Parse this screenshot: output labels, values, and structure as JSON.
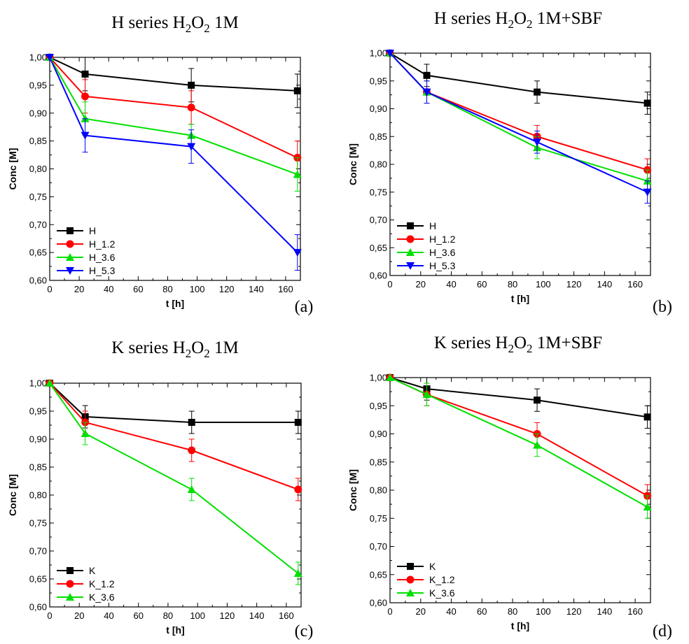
{
  "chart_data": [
    {
      "type": "line",
      "title": "H series H2O2 1M",
      "title_parts": [
        "H series H",
        "2",
        "O",
        "2",
        " 1M"
      ],
      "panel_label": "(a)",
      "xlabel": "t [h]",
      "ylabel": "Conc [M]",
      "xlim": [
        0,
        170
      ],
      "ylim": [
        0.6,
        1.0
      ],
      "xticks": [
        "0",
        "20",
        "40",
        "60",
        "80",
        "100",
        "120",
        "140",
        "160"
      ],
      "yticks": [
        "0,60",
        "0,65",
        "0,70",
        "0,75",
        "0,80",
        "0,85",
        "0,90",
        "0,95",
        "1,00"
      ],
      "grid": false,
      "legend_position": "bottom-left",
      "x": [
        0,
        24,
        96,
        168
      ],
      "series": [
        {
          "name": "H",
          "color": "#000000",
          "marker": "square",
          "values": [
            1.0,
            0.97,
            0.95,
            0.94
          ],
          "errors": [
            0,
            0.03,
            0.03,
            0.03
          ]
        },
        {
          "name": "H_1.2",
          "color": "#ff0000",
          "marker": "circle",
          "values": [
            1.0,
            0.93,
            0.91,
            0.82
          ],
          "errors": [
            0,
            0.03,
            0.03,
            0.03
          ]
        },
        {
          "name": "H_3.6",
          "color": "#00e000",
          "marker": "triangle-up",
          "values": [
            1.0,
            0.89,
            0.86,
            0.79
          ],
          "errors": [
            0,
            0.03,
            0.02,
            0.03
          ]
        },
        {
          "name": "H_5.3",
          "color": "#0000ff",
          "marker": "triangle-down",
          "values": [
            1.0,
            0.86,
            0.84,
            0.65
          ],
          "errors": [
            0,
            0.03,
            0.03,
            0.032
          ]
        }
      ]
    },
    {
      "type": "line",
      "title": "H series H2O2 1M+SBF",
      "title_parts": [
        "H series H",
        "2",
        "O",
        "2",
        " 1M+SBF"
      ],
      "panel_label": "(b)",
      "xlabel": "t [h]",
      "ylabel": "Conc [M]",
      "xlim": [
        0,
        170
      ],
      "ylim": [
        0.6,
        1.0
      ],
      "xticks": [
        "0",
        "20",
        "40",
        "60",
        "80",
        "100",
        "120",
        "140",
        "160"
      ],
      "yticks": [
        "0,60",
        "0,65",
        "0,70",
        "0,75",
        "0,80",
        "0,85",
        "0,90",
        "0,95",
        "1,00"
      ],
      "grid": false,
      "legend_position": "bottom-left",
      "x": [
        0,
        24,
        96,
        168
      ],
      "series": [
        {
          "name": "H",
          "color": "#000000",
          "marker": "square",
          "values": [
            1.0,
            0.96,
            0.93,
            0.91
          ],
          "errors": [
            0,
            0.02,
            0.02,
            0.02
          ]
        },
        {
          "name": "H_1.2",
          "color": "#ff0000",
          "marker": "circle",
          "values": [
            1.0,
            0.93,
            0.85,
            0.79
          ],
          "errors": [
            0,
            0.02,
            0.02,
            0.02
          ]
        },
        {
          "name": "H_3.6",
          "color": "#00e000",
          "marker": "triangle-up",
          "values": [
            1.0,
            0.93,
            0.83,
            0.77
          ],
          "errors": [
            0,
            0.02,
            0.02,
            0.02
          ]
        },
        {
          "name": "H_5.3",
          "color": "#0000ff",
          "marker": "triangle-down",
          "values": [
            1.0,
            0.93,
            0.84,
            0.75
          ],
          "errors": [
            0,
            0.02,
            0.02,
            0.02
          ]
        }
      ]
    },
    {
      "type": "line",
      "title": "K series H2O2 1M",
      "title_parts": [
        "K series H",
        "2",
        "O",
        "2",
        " 1M"
      ],
      "panel_label": "(c)",
      "xlabel": "t [h]",
      "ylabel": "Conc [M]",
      "xlim": [
        0,
        170
      ],
      "ylim": [
        0.6,
        1.0
      ],
      "xticks": [
        "0",
        "20",
        "40",
        "60",
        "80",
        "100",
        "120",
        "140",
        "160"
      ],
      "yticks": [
        "0,60",
        "0,65",
        "0,70",
        "0,75",
        "0,80",
        "0,85",
        "0,90",
        "0,95",
        "1,00"
      ],
      "grid": false,
      "legend_position": "bottom-left",
      "x": [
        0,
        24,
        96,
        168
      ],
      "series": [
        {
          "name": "K",
          "color": "#000000",
          "marker": "square",
          "values": [
            1.0,
            0.94,
            0.93,
            0.93
          ],
          "errors": [
            0,
            0.02,
            0.02,
            0.02
          ]
        },
        {
          "name": "K_1.2",
          "color": "#ff0000",
          "marker": "circle",
          "values": [
            1.0,
            0.93,
            0.88,
            0.81
          ],
          "errors": [
            0,
            0.02,
            0.02,
            0.02
          ]
        },
        {
          "name": "K_3.6",
          "color": "#00e000",
          "marker": "triangle-up",
          "values": [
            1.0,
            0.91,
            0.81,
            0.66
          ],
          "errors": [
            0,
            0.02,
            0.02,
            0.02
          ]
        }
      ]
    },
    {
      "type": "line",
      "title": "K series H2O2 1M+SBF",
      "title_parts": [
        "K series H",
        "2",
        "O",
        "2",
        " 1M+SBF"
      ],
      "panel_label": "(d)",
      "xlabel": "t [h]",
      "ylabel": "Conc [M]",
      "xlim": [
        0,
        170
      ],
      "ylim": [
        0.6,
        1.0
      ],
      "xticks": [
        "0",
        "20",
        "40",
        "60",
        "80",
        "100",
        "120",
        "140",
        "160"
      ],
      "yticks": [
        "0,60",
        "0,65",
        "0,70",
        "0,75",
        "0,80",
        "0,85",
        "0,90",
        "0,95",
        "1,00"
      ],
      "grid": false,
      "legend_position": "bottom-left",
      "x": [
        0,
        24,
        96,
        168
      ],
      "series": [
        {
          "name": "K",
          "color": "#000000",
          "marker": "square",
          "values": [
            1.0,
            0.98,
            0.96,
            0.93
          ],
          "errors": [
            0,
            0.02,
            0.02,
            0.02
          ]
        },
        {
          "name": "K_1.2",
          "color": "#ff0000",
          "marker": "circle",
          "values": [
            1.0,
            0.97,
            0.9,
            0.79
          ],
          "errors": [
            0,
            0.02,
            0.02,
            0.02
          ]
        },
        {
          "name": "K_3.6",
          "color": "#00e000",
          "marker": "triangle-up",
          "values": [
            1.0,
            0.97,
            0.88,
            0.77
          ],
          "errors": [
            0,
            0.02,
            0.02,
            0.02
          ]
        }
      ]
    }
  ]
}
